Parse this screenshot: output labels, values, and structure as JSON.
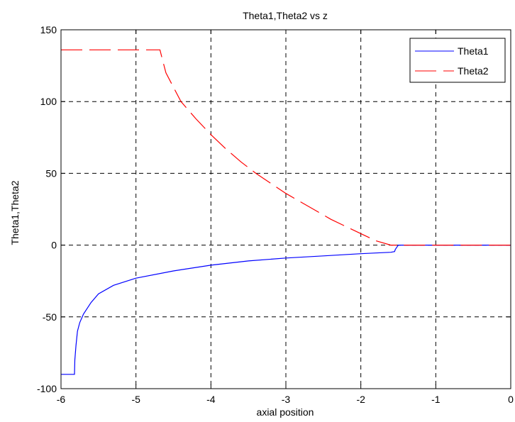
{
  "chart_data": {
    "type": "line",
    "title": "Theta1,Theta2 vs z",
    "xlabel": "axial position",
    "ylabel": "Theta1,Theta2",
    "xlim": [
      -6,
      0
    ],
    "ylim": [
      -100,
      150
    ],
    "xticks": [
      -6,
      -5,
      -4,
      -3,
      -2,
      -1,
      0
    ],
    "yticks": [
      -100,
      -50,
      0,
      50,
      100,
      150
    ],
    "xtick_labels": [
      "-6",
      "-5",
      "-4",
      "-3",
      "-2",
      "-1",
      "0"
    ],
    "ytick_labels": [
      "-100",
      "-50",
      "0",
      "50",
      "100",
      "150"
    ],
    "grid": true,
    "legend_position": "top-right",
    "series": [
      {
        "name": "Theta1",
        "color": "#0000ff",
        "line_style": "solid",
        "x": [
          -6.0,
          -5.82,
          -5.815,
          -5.8,
          -5.78,
          -5.75,
          -5.7,
          -5.6,
          -5.5,
          -5.3,
          -5.0,
          -4.5,
          -4.0,
          -3.5,
          -3.0,
          -2.5,
          -2.0,
          -1.6,
          -1.55,
          -1.54,
          -1.52,
          -1.5,
          -1.0,
          0.0
        ],
        "y": [
          -90,
          -90,
          -80,
          -70,
          -60,
          -54,
          -48,
          -40,
          -34,
          -28,
          -23,
          -18,
          -14,
          -11,
          -9,
          -7.5,
          -6,
          -5,
          -4.5,
          -3,
          -1.5,
          0,
          0,
          0
        ]
      },
      {
        "name": "Theta2",
        "color": "#ff0000",
        "line_style": "dashed",
        "x": [
          -6.0,
          -4.7,
          -4.68,
          -4.65,
          -4.6,
          -4.4,
          -4.2,
          -4.0,
          -3.8,
          -3.6,
          -3.4,
          -3.2,
          -3.0,
          -2.8,
          -2.6,
          -2.4,
          -2.2,
          -2.0,
          -1.8,
          -1.6,
          -1.5,
          -1.0,
          0.0
        ],
        "y": [
          136,
          136,
          136,
          130,
          120,
          100,
          88,
          77,
          67,
          58,
          50,
          43,
          36,
          30,
          24,
          18,
          13,
          8,
          3,
          0,
          0,
          0,
          0
        ]
      }
    ]
  }
}
